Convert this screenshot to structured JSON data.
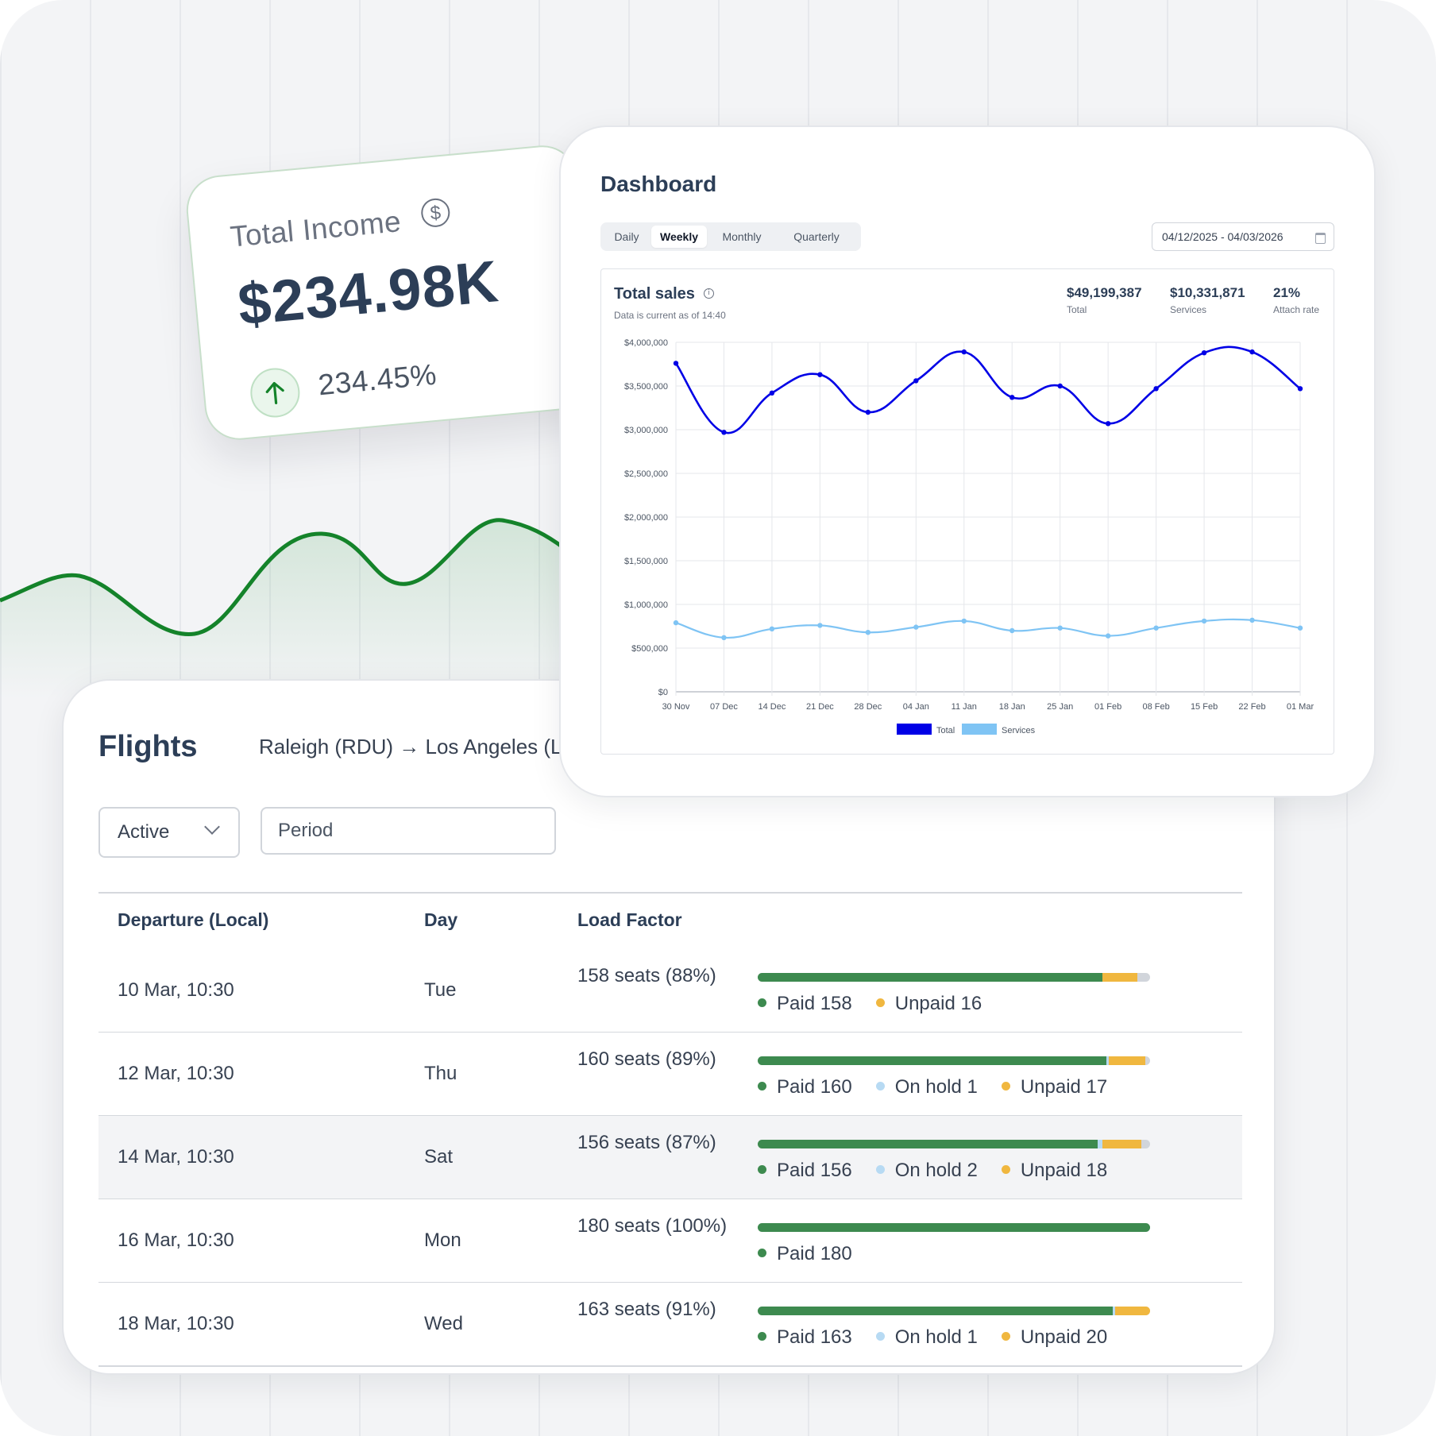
{
  "income": {
    "title": "Total Income",
    "icon": "dollar-circle-icon",
    "value": "$234.98K",
    "change": "234.45%",
    "change_icon": "arrow-up-icon",
    "accent": "#14832a"
  },
  "dashboard": {
    "title": "Dashboard",
    "tabs": [
      {
        "label": "Daily",
        "active": false
      },
      {
        "label": "Weekly",
        "active": true
      },
      {
        "label": "Monthly",
        "active": false
      },
      {
        "label": "Quarterly",
        "active": false
      }
    ],
    "date_range": "04/12/2025 - 04/03/2026",
    "date_icon": "calendar-icon",
    "sales": {
      "title": "Total sales",
      "subtitle": "Data is current as of 14:40",
      "stats": [
        {
          "value": "$49,199,387",
          "label": "Total"
        },
        {
          "value": "$10,331,871",
          "label": "Services"
        },
        {
          "value": "21%",
          "label": "Attach rate"
        }
      ]
    }
  },
  "chart_data": {
    "type": "line",
    "title": "Total sales",
    "x": [
      "30 Nov",
      "07 Dec",
      "14 Dec",
      "21 Dec",
      "28 Dec",
      "04 Jan",
      "11 Jan",
      "18 Jan",
      "25 Jan",
      "01 Feb",
      "08 Feb",
      "15 Feb",
      "22 Feb",
      "01 Mar"
    ],
    "y_ticks": [
      "$4,000,000",
      "$3,500,000",
      "$3,000,000",
      "$2,500,000",
      "$2,000,000",
      "$1,500,000",
      "$1,000,000",
      "$500,000",
      "$0"
    ],
    "ylim": [
      0,
      4000000
    ],
    "grid": true,
    "legend": "bottom",
    "series": [
      {
        "name": "Total",
        "color": "#0000e6",
        "values": [
          3760000,
          2970000,
          3420000,
          3630000,
          3200000,
          3560000,
          3890000,
          3370000,
          3500000,
          3070000,
          3470000,
          3880000,
          3890000,
          3470000
        ]
      },
      {
        "name": "Services",
        "color": "#7fc4f4",
        "values": [
          790000,
          620000,
          720000,
          760000,
          680000,
          740000,
          810000,
          700000,
          730000,
          640000,
          730000,
          810000,
          820000,
          730000
        ]
      }
    ]
  },
  "flights": {
    "title": "Flights",
    "route": "Raleigh (RDU) → Los Angeles (LAX)",
    "status_value": "Active",
    "period_placeholder": "Period",
    "columns": [
      "Departure (Local)",
      "Day",
      "Load Factor"
    ],
    "colors": {
      "paid": "#3d8a4f",
      "on_hold": "#b7daf3",
      "unpaid": "#f0b73f",
      "empty": "#d1d5db"
    },
    "rows": [
      {
        "departure": "10 Mar, 10:30",
        "day": "Tue",
        "seats": "158 seats (88%)",
        "paid": 158,
        "on_hold": 0,
        "unpaid": 16,
        "legend": [
          "Paid 158",
          "Unpaid 16"
        ],
        "legend_kinds": [
          "paid",
          "unpaid"
        ],
        "shade": false
      },
      {
        "departure": "12 Mar, 10:30",
        "day": "Thu",
        "seats": "160 seats (89%)",
        "paid": 160,
        "on_hold": 1,
        "unpaid": 17,
        "legend": [
          "Paid 160",
          "On hold 1",
          "Unpaid 17"
        ],
        "legend_kinds": [
          "paid",
          "on_hold",
          "unpaid"
        ],
        "shade": false
      },
      {
        "departure": "14 Mar, 10:30",
        "day": "Sat",
        "seats": "156 seats (87%)",
        "paid": 156,
        "on_hold": 2,
        "unpaid": 18,
        "legend": [
          "Paid 156",
          "On hold 2",
          "Unpaid 18"
        ],
        "legend_kinds": [
          "paid",
          "on_hold",
          "unpaid"
        ],
        "shade": true
      },
      {
        "departure": "16 Mar, 10:30",
        "day": "Mon",
        "seats": "180 seats (100%)",
        "paid": 180,
        "on_hold": 0,
        "unpaid": 0,
        "legend": [
          "Paid 180"
        ],
        "legend_kinds": [
          "paid"
        ],
        "shade": false
      },
      {
        "departure": "18 Mar, 10:30",
        "day": "Wed",
        "seats": "163 seats (91%)",
        "paid": 163,
        "on_hold": 1,
        "unpaid": 20,
        "legend": [
          "Paid 163",
          "On hold 1",
          "Unpaid 20"
        ],
        "legend_kinds": [
          "paid",
          "on_hold",
          "unpaid"
        ],
        "shade": false
      }
    ]
  }
}
